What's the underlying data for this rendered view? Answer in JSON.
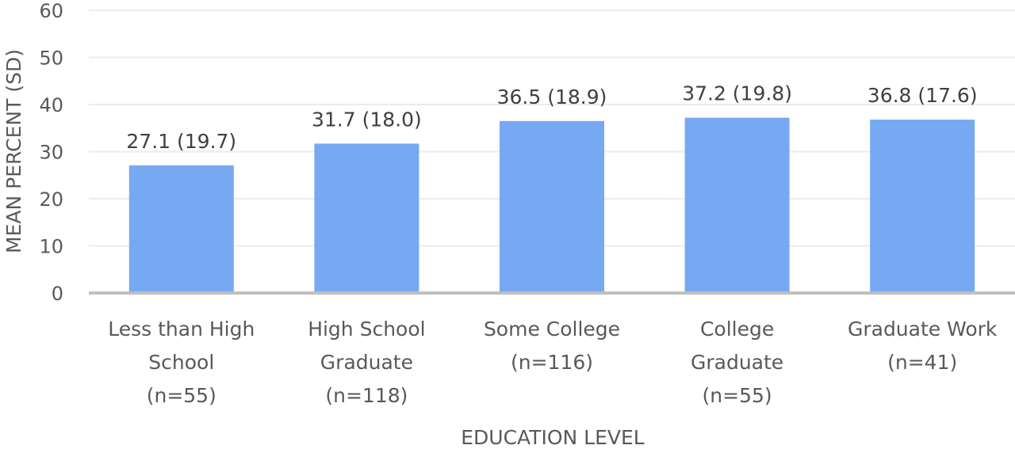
{
  "chart_data": {
    "type": "bar",
    "title": "",
    "xlabel": "EDUCATION LEVEL",
    "ylabel": "MEAN PERCENT (SD)",
    "ylim": [
      0,
      60
    ],
    "yticks": [
      0,
      10,
      20,
      30,
      40,
      50,
      60
    ],
    "grid": true,
    "bar_color": "#76A9F2",
    "categories": [
      [
        "Less than High",
        "School",
        "(n=55)"
      ],
      [
        "High School",
        "Graduate",
        "(n=118)"
      ],
      [
        "Some College",
        "(n=116)"
      ],
      [
        "College",
        "Graduate",
        "(n=55)"
      ],
      [
        "Graduate Work",
        "(n=41)"
      ]
    ],
    "values": [
      27.1,
      31.7,
      36.5,
      37.2,
      36.8
    ],
    "sd": [
      19.7,
      18.0,
      18.9,
      19.8,
      17.6
    ],
    "data_labels": [
      "27.1 (19.7)",
      "31.7 (18.0)",
      "36.5 (18.9)",
      "37.2 (19.8)",
      "36.8 (17.6)"
    ]
  }
}
